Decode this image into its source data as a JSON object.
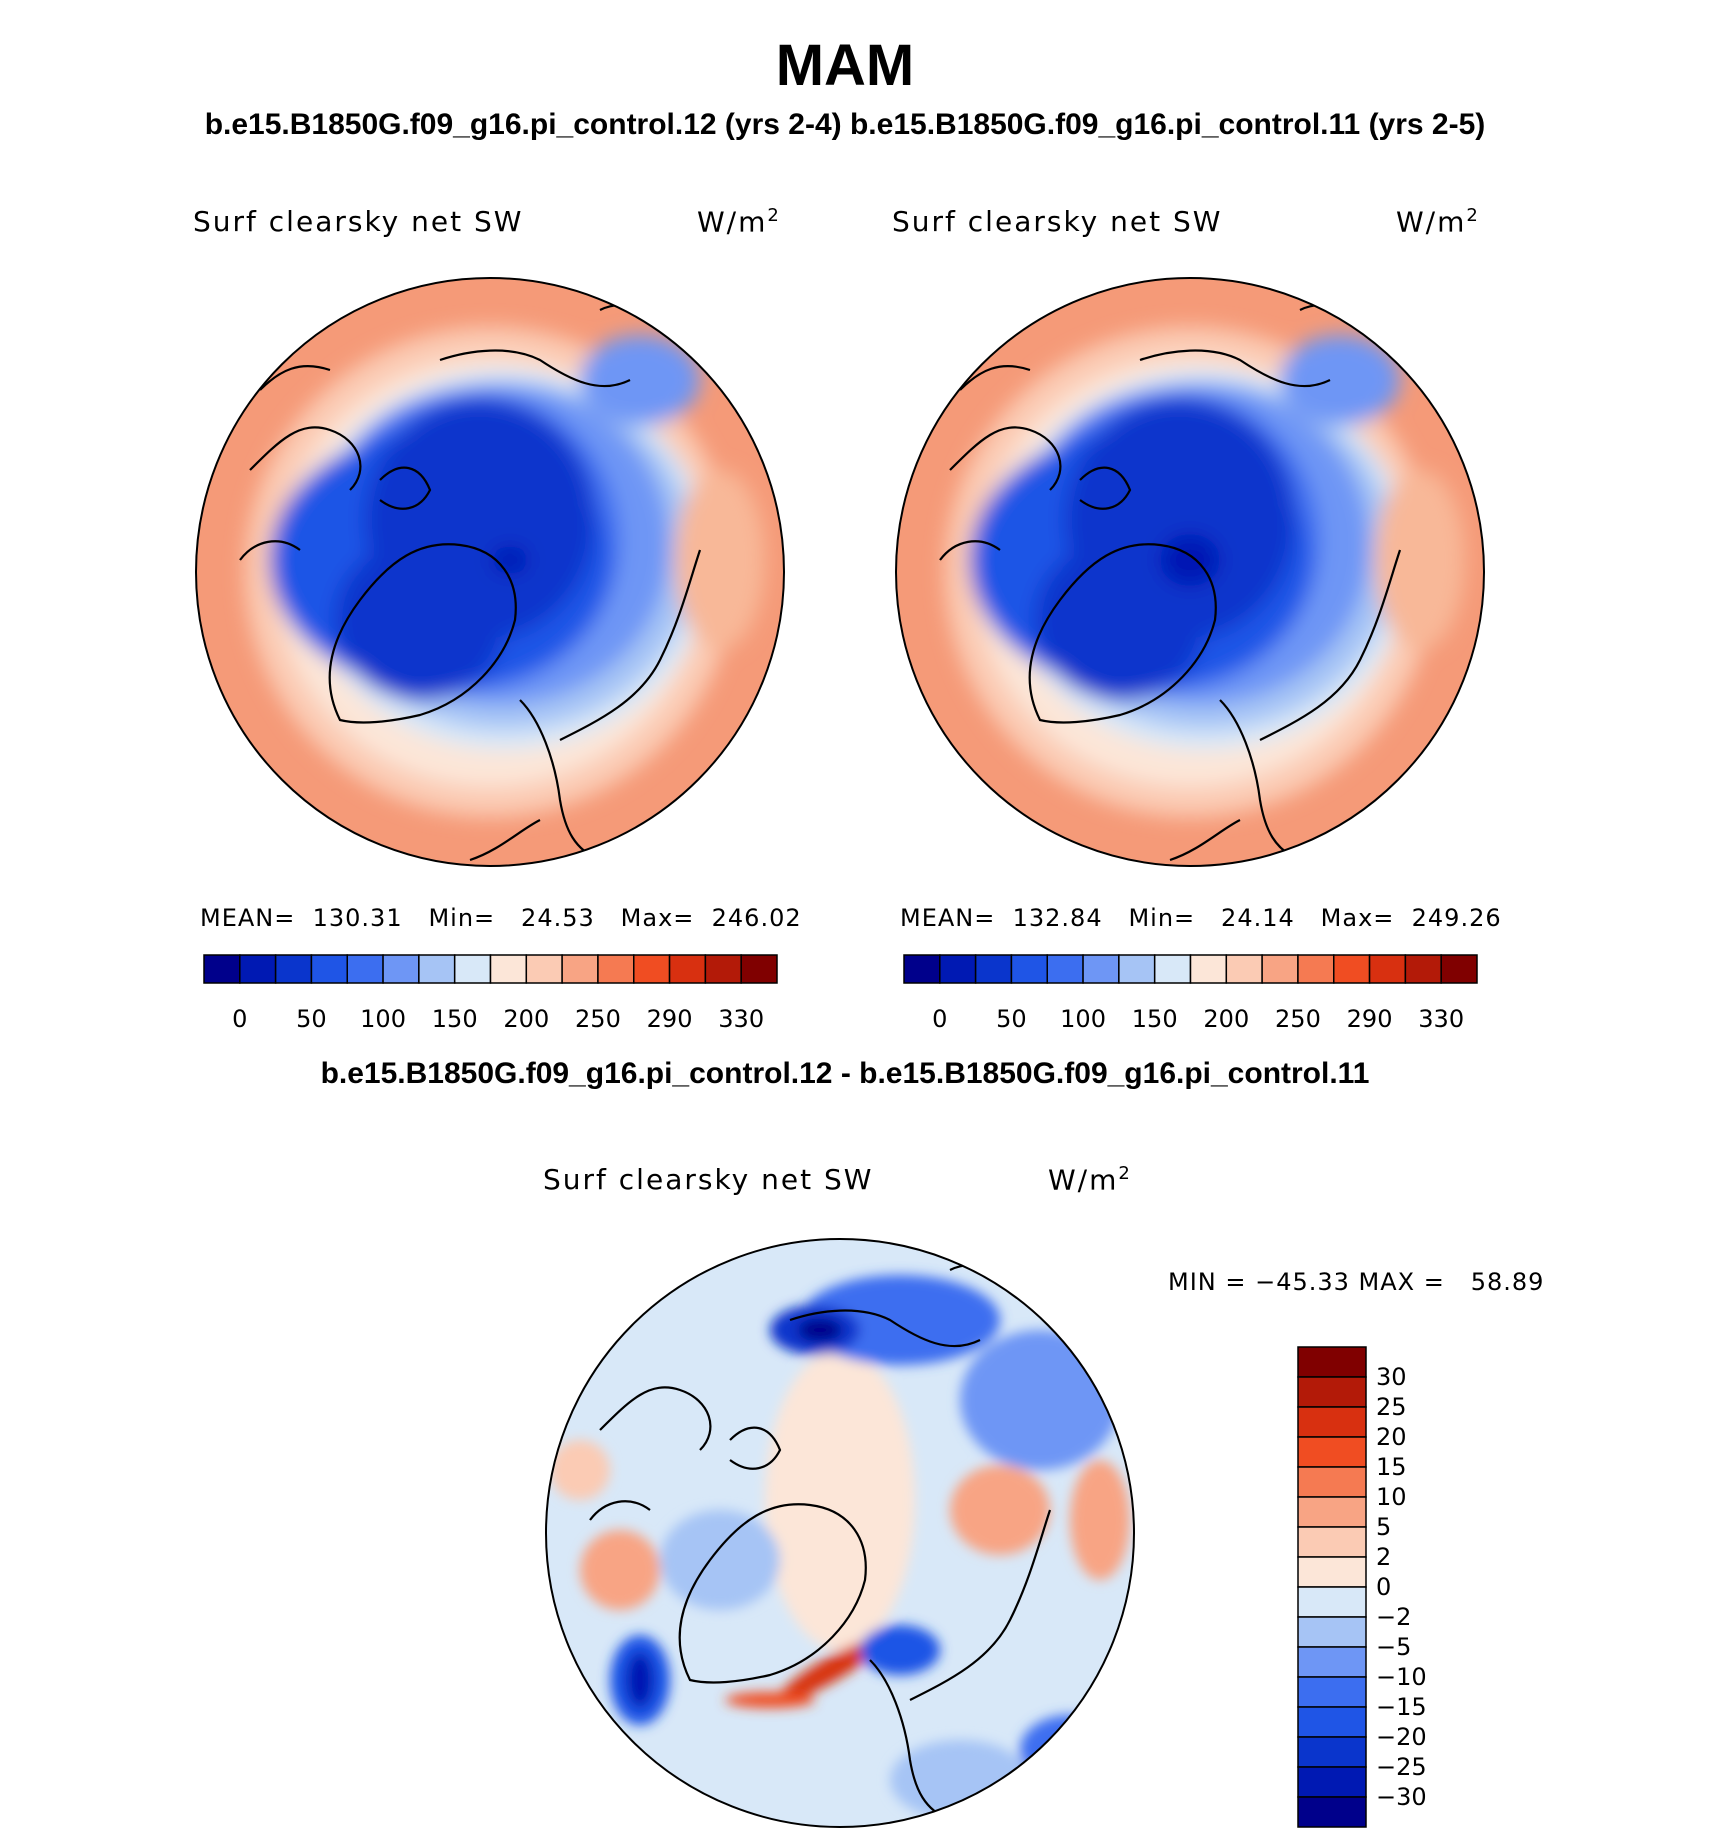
{
  "title": "MAM",
  "header_subtitle": "b.e15.B1850G.f09_g16.pi_control.12 (yrs 2-4) b.e15.B1850G.f09_g16.pi_control.11 (yrs 2-5)",
  "diff_subtitle": "b.e15.B1850G.f09_g16.pi_control.12 - b.e15.B1850G.f09_g16.pi_control.11",
  "colors": {
    "abs_scale": [
      "#00008b",
      "#0019b3",
      "#0a35cc",
      "#1f55e6",
      "#3c6ef0",
      "#6e96f5",
      "#a6c4f5",
      "#d8e8f8",
      "#fce6d8",
      "#fbcbb4",
      "#f8a484",
      "#f57a52",
      "#f04d22",
      "#d83010",
      "#b31a08",
      "#800000"
    ],
    "diff_scale": [
      "#00008b",
      "#0019b3",
      "#0a35cc",
      "#1f55e6",
      "#3c6ef0",
      "#6e96f5",
      "#a6c4f5",
      "#d8e8f8",
      "#fce6d8",
      "#fbcbb4",
      "#f8a484",
      "#f57a52",
      "#f04d22",
      "#d83010",
      "#b31a08",
      "#800000"
    ],
    "land_outline": "#000000"
  },
  "chart_data": [
    {
      "type": "heatmap",
      "projection": "polar stereographic (north pole)",
      "title": "Surf clearsky net SW",
      "units": "W/m²",
      "units_base": "W/m",
      "units_sup": "2",
      "case": "b.e15.B1850G.f09_g16.pi_control.12 (yrs 2-4)",
      "stats": {
        "mean": 130.31,
        "min": 24.53,
        "max": 246.02
      },
      "stats_text": "MEAN=  130.31   Min=   24.53   Max=  246.02",
      "colorbar": {
        "orientation": "horizontal",
        "tick_labels": [
          "0",
          "50",
          "100",
          "150",
          "200",
          "250",
          "290",
          "330"
        ]
      }
    },
    {
      "type": "heatmap",
      "projection": "polar stereographic (north pole)",
      "title": "Surf clearsky net SW",
      "units": "W/m²",
      "units_base": "W/m",
      "units_sup": "2",
      "case": "b.e15.B1850G.f09_g16.pi_control.11 (yrs 2-5)",
      "stats": {
        "mean": 132.84,
        "min": 24.14,
        "max": 249.26
      },
      "stats_text": "MEAN=  132.84   Min=   24.14   Max=  249.26",
      "colorbar": {
        "orientation": "horizontal",
        "tick_labels": [
          "0",
          "50",
          "100",
          "150",
          "200",
          "250",
          "290",
          "330"
        ]
      }
    },
    {
      "type": "heatmap",
      "projection": "polar stereographic (north pole)",
      "title": "Surf clearsky net SW",
      "units": "W/m²",
      "units_base": "W/m",
      "units_sup": "2",
      "case": "b.e15.B1850G.f09_g16.pi_control.12 - b.e15.B1850G.f09_g16.pi_control.11",
      "stats": {
        "min": -45.33,
        "max": 58.89
      },
      "stats_text": "MIN = −45.33 MAX =   58.89",
      "colorbar": {
        "orientation": "vertical",
        "tick_labels": [
          "30",
          "25",
          "20",
          "15",
          "10",
          "5",
          "2",
          "0",
          "−2",
          "−5",
          "−10",
          "−15",
          "−20",
          "−25",
          "−30"
        ]
      }
    }
  ]
}
